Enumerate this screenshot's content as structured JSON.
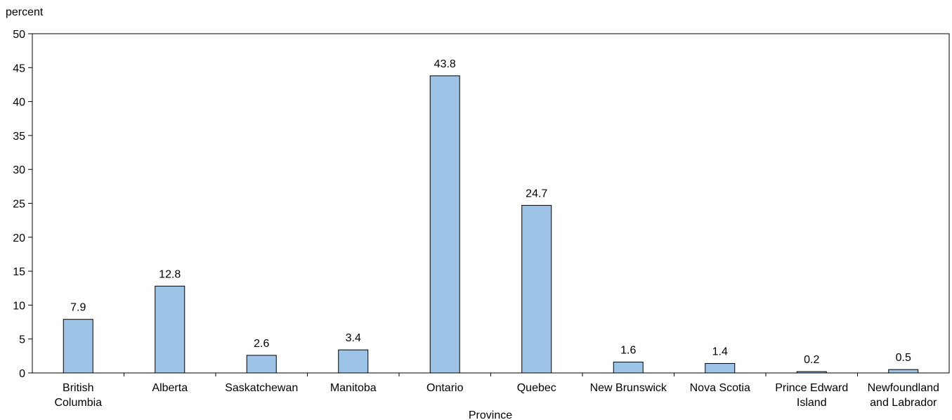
{
  "chart_data": {
    "type": "bar",
    "ylabel": "percent",
    "xlabel": "Province",
    "ylim": [
      0,
      50
    ],
    "yticks": [
      0,
      5,
      10,
      15,
      20,
      25,
      30,
      35,
      40,
      45,
      50
    ],
    "categories": [
      [
        "British",
        "Columbia"
      ],
      [
        "Alberta"
      ],
      [
        "Saskatchewan"
      ],
      [
        "Manitoba"
      ],
      [
        "Ontario"
      ],
      [
        "Quebec"
      ],
      [
        "New Brunswick"
      ],
      [
        "Nova Scotia"
      ],
      [
        "Prince Edward",
        "Island"
      ],
      [
        "Newfoundland",
        "and Labrador"
      ]
    ],
    "values": [
      7.9,
      12.8,
      2.6,
      3.4,
      43.8,
      24.7,
      1.6,
      1.4,
      0.2,
      0.5
    ],
    "data_labels": [
      "7.9",
      "12.8",
      "2.6",
      "3.4",
      "43.8",
      "24.7",
      "1.6",
      "1.4",
      "0.2",
      "0.5"
    ],
    "bar_color": "#9dc3e6",
    "bar_stroke": "#000000",
    "grid": false,
    "legend": "none"
  }
}
